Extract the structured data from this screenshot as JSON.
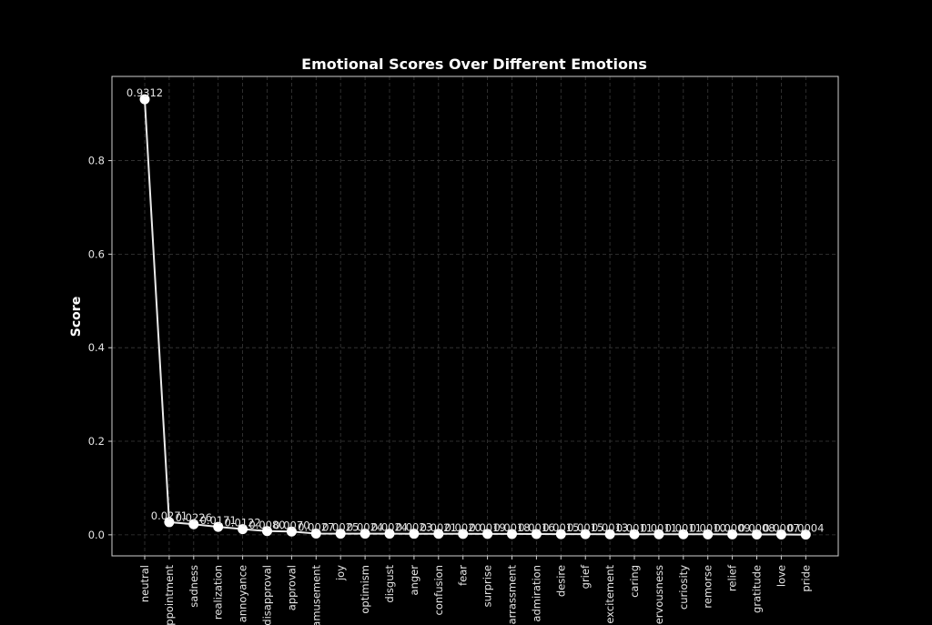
{
  "chart_data": {
    "type": "line",
    "title": "Emotional Scores Over Different Emotions",
    "xlabel": "",
    "ylabel": "Score",
    "ylim": [
      -0.045,
      0.98
    ],
    "yticks": [
      "0.0",
      "0.2",
      "0.4",
      "0.6",
      "0.8"
    ],
    "grid": true,
    "categories": [
      "neutral",
      "disappointment",
      "sadness",
      "realization",
      "annoyance",
      "disapproval",
      "approval",
      "amusement",
      "joy",
      "optimism",
      "disgust",
      "anger",
      "confusion",
      "fear",
      "surprise",
      "embarrassment",
      "admiration",
      "desire",
      "grief",
      "excitement",
      "caring",
      "nervousness",
      "curiosity",
      "remorse",
      "relief",
      "gratitude",
      "love",
      "pride"
    ],
    "values": [
      0.9312,
      0.0271,
      0.0226,
      0.0171,
      0.0122,
      0.008,
      0.007,
      0.0027,
      0.0025,
      0.0024,
      0.0024,
      0.0023,
      0.0021,
      0.002,
      0.0019,
      0.0018,
      0.0016,
      0.0015,
      0.0015,
      0.0013,
      0.0011,
      0.0011,
      0.0011,
      0.001,
      0.0009,
      0.0008,
      0.0007,
      0.0004
    ],
    "data_labels": [
      "0.9312",
      "0.0271",
      "0.0226",
      "0.0171",
      "0.0122",
      "0.0080",
      "0.0070",
      "0.0027",
      "0.0025",
      "0.0024",
      "0.0024",
      "0.0023",
      "0.0021",
      "0.0020",
      "0.0019",
      "0.0018",
      "0.0016",
      "0.0015",
      "0.0015",
      "0.0013",
      "0.0011",
      "0.0011",
      "0.0011",
      "0.0010",
      "0.0009",
      "0.0008",
      "0.0007",
      "0.0004"
    ],
    "colors": {
      "background": "#000000",
      "line": "#eaeaea",
      "marker": "#ffffff",
      "text": "#e6e6e6",
      "grid": "#3a3a3a"
    }
  }
}
